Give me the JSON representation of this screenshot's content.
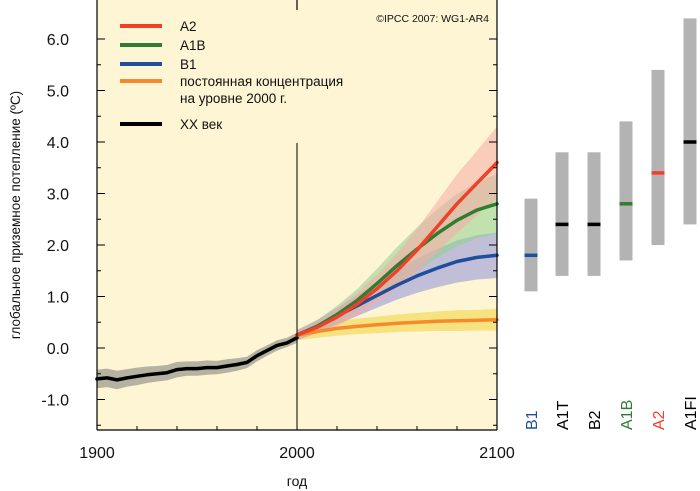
{
  "chart_data": {
    "type": "line",
    "title": "",
    "copyright": "©IPCC  2007: WG1-AR4",
    "xlabel": "год",
    "ylabel": "глобальное приземное потепление (ºC)",
    "xlim": [
      1900,
      2100
    ],
    "ylim": [
      -1.5,
      6.4
    ],
    "x_ticks": [
      "1900",
      "2000",
      "2100"
    ],
    "y_ticks": [
      "-1.0",
      "0.0",
      "1.0",
      "2.0",
      "3.0",
      "4.0",
      "5.0",
      "6.0"
    ],
    "divider_year": 2000,
    "legend": [
      {
        "label": "A2",
        "color": "#f0402a"
      },
      {
        "label": "A1B",
        "color": "#2e7d32"
      },
      {
        "label": "B1",
        "color": "#1f4e9c"
      },
      {
        "label": "постоянная концентрация",
        "label2": "на уровне 2000 г.",
        "color": "#f58a2c"
      },
      {
        "label": "XX век",
        "color": "#000000"
      }
    ],
    "series": [
      {
        "name": "XX век",
        "color": "#000000",
        "band_color": "#7a7a7a",
        "x": [
          1900,
          1905,
          1910,
          1915,
          1920,
          1925,
          1930,
          1935,
          1940,
          1945,
          1950,
          1955,
          1960,
          1965,
          1970,
          1975,
          1980,
          1985,
          1990,
          1995,
          2000
        ],
        "y": [
          -0.6,
          -0.58,
          -0.62,
          -0.58,
          -0.55,
          -0.52,
          -0.5,
          -0.48,
          -0.42,
          -0.4,
          -0.4,
          -0.38,
          -0.38,
          -0.35,
          -0.32,
          -0.28,
          -0.15,
          -0.05,
          0.05,
          0.1,
          0.2
        ],
        "lower": [
          -0.78,
          -0.76,
          -0.8,
          -0.75,
          -0.72,
          -0.68,
          -0.65,
          -0.63,
          -0.57,
          -0.54,
          -0.54,
          -0.52,
          -0.51,
          -0.48,
          -0.44,
          -0.39,
          -0.26,
          -0.15,
          -0.05,
          0.02,
          0.1
        ],
        "upper": [
          -0.42,
          -0.4,
          -0.44,
          -0.41,
          -0.38,
          -0.36,
          -0.35,
          -0.33,
          -0.27,
          -0.26,
          -0.26,
          -0.24,
          -0.25,
          -0.22,
          -0.2,
          -0.17,
          -0.04,
          0.05,
          0.15,
          0.2,
          0.3
        ]
      },
      {
        "name": "постоянная концентрация на уровне 2000 г.",
        "color": "#f58a2c",
        "band_color": "#f2d23c",
        "x": [
          2000,
          2010,
          2020,
          2030,
          2040,
          2050,
          2060,
          2070,
          2080,
          2090,
          2100
        ],
        "y": [
          0.25,
          0.32,
          0.38,
          0.42,
          0.45,
          0.48,
          0.5,
          0.52,
          0.53,
          0.54,
          0.55
        ],
        "lower": [
          0.15,
          0.2,
          0.24,
          0.27,
          0.29,
          0.31,
          0.32,
          0.33,
          0.33,
          0.34,
          0.34
        ],
        "upper": [
          0.35,
          0.44,
          0.52,
          0.57,
          0.61,
          0.65,
          0.68,
          0.71,
          0.73,
          0.74,
          0.76
        ]
      },
      {
        "name": "B1",
        "color": "#1f4e9c",
        "band_color": "#8f92dc",
        "x": [
          2000,
          2010,
          2020,
          2030,
          2040,
          2050,
          2060,
          2070,
          2080,
          2090,
          2100
        ],
        "y": [
          0.25,
          0.42,
          0.62,
          0.82,
          1.02,
          1.22,
          1.4,
          1.55,
          1.68,
          1.76,
          1.8
        ],
        "lower": [
          0.15,
          0.3,
          0.46,
          0.62,
          0.78,
          0.94,
          1.07,
          1.18,
          1.27,
          1.33,
          1.36
        ],
        "upper": [
          0.35,
          0.54,
          0.78,
          1.02,
          1.26,
          1.5,
          1.73,
          1.92,
          2.09,
          2.19,
          2.24
        ]
      },
      {
        "name": "A1B",
        "color": "#2e7d32",
        "band_color": "#8fd08f",
        "x": [
          2000,
          2010,
          2020,
          2030,
          2040,
          2050,
          2060,
          2070,
          2080,
          2090,
          2100
        ],
        "y": [
          0.25,
          0.42,
          0.65,
          0.92,
          1.25,
          1.6,
          1.92,
          2.22,
          2.48,
          2.68,
          2.8
        ],
        "lower": [
          0.15,
          0.3,
          0.48,
          0.7,
          0.96,
          1.24,
          1.5,
          1.75,
          1.97,
          2.13,
          2.22
        ],
        "upper": [
          0.35,
          0.54,
          0.82,
          1.14,
          1.54,
          1.96,
          2.34,
          2.69,
          2.99,
          3.23,
          3.38
        ]
      },
      {
        "name": "A2",
        "color": "#f0402a",
        "band_color": "#f7a9a6",
        "x": [
          2000,
          2010,
          2020,
          2030,
          2040,
          2050,
          2060,
          2070,
          2080,
          2090,
          2100
        ],
        "y": [
          0.25,
          0.4,
          0.6,
          0.85,
          1.15,
          1.5,
          1.9,
          2.35,
          2.8,
          3.2,
          3.6
        ],
        "lower": [
          0.15,
          0.28,
          0.43,
          0.63,
          0.88,
          1.16,
          1.49,
          1.86,
          2.23,
          2.58,
          2.9
        ],
        "upper": [
          0.35,
          0.52,
          0.77,
          1.07,
          1.42,
          1.84,
          2.31,
          2.84,
          3.37,
          3.83,
          4.3
        ]
      }
    ],
    "range_bars": [
      {
        "label": "B1",
        "low": 1.1,
        "high": 2.9,
        "best": 1.8,
        "color": "#1f4e9c"
      },
      {
        "label": "A1T",
        "low": 1.4,
        "high": 3.8,
        "best": 2.4,
        "color": "#000000"
      },
      {
        "label": "B2",
        "low": 1.4,
        "high": 3.8,
        "best": 2.4,
        "color": "#000000"
      },
      {
        "label": "A1B",
        "low": 1.7,
        "high": 4.4,
        "best": 2.8,
        "color": "#2e7d32"
      },
      {
        "label": "A2",
        "low": 2.0,
        "high": 5.4,
        "best": 3.4,
        "color": "#f0402a"
      },
      {
        "label": "A1FI",
        "low": 2.4,
        "high": 6.4,
        "best": 4.0,
        "color": "#000000"
      }
    ],
    "colors": {
      "plot_bg": "#fdf5d3",
      "range_bar": "#b3b3b3"
    }
  }
}
